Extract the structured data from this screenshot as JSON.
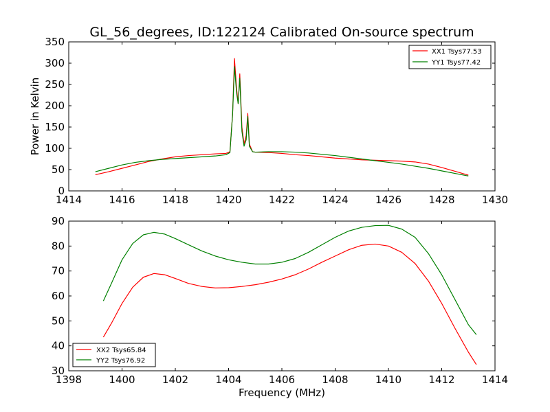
{
  "title": "GL_56_degrees, ID:122124 Calibrated On-source spectrum",
  "chart_data": [
    {
      "type": "line",
      "title": "GL_56_degrees, ID:122124 Calibrated On-source spectrum",
      "xlabel": "",
      "ylabel": "Power in Kelvin",
      "xlim": [
        1414,
        1430
      ],
      "ylim": [
        0,
        350
      ],
      "xticks": [
        1414,
        1416,
        1418,
        1420,
        1422,
        1424,
        1426,
        1428,
        1430
      ],
      "yticks": [
        0,
        50,
        100,
        150,
        200,
        250,
        300,
        350
      ],
      "legend": "top-right",
      "grid": false,
      "series": [
        {
          "name": "XX1 Tsys77.53",
          "color": "#ff0000",
          "points": [
            [
              1415.0,
              38
            ],
            [
              1415.5,
              45
            ],
            [
              1416.0,
              53
            ],
            [
              1416.5,
              61
            ],
            [
              1417.0,
              69
            ],
            [
              1417.5,
              75
            ],
            [
              1418.0,
              80
            ],
            [
              1418.5,
              83
            ],
            [
              1419.0,
              85
            ],
            [
              1419.5,
              87
            ],
            [
              1419.9,
              88
            ],
            [
              1420.05,
              92
            ],
            [
              1420.15,
              180
            ],
            [
              1420.22,
              311
            ],
            [
              1420.3,
              240
            ],
            [
              1420.36,
              205
            ],
            [
              1420.42,
              275
            ],
            [
              1420.5,
              150
            ],
            [
              1420.58,
              110
            ],
            [
              1420.66,
              130
            ],
            [
              1420.72,
              182
            ],
            [
              1420.78,
              110
            ],
            [
              1420.9,
              92
            ],
            [
              1421.0,
              91
            ],
            [
              1421.5,
              90
            ],
            [
              1422.0,
              88
            ],
            [
              1422.5,
              85
            ],
            [
              1423.0,
              83
            ],
            [
              1423.5,
              80
            ],
            [
              1424.0,
              77
            ],
            [
              1424.5,
              75
            ],
            [
              1425.0,
              73
            ],
            [
              1425.5,
              72
            ],
            [
              1426.0,
              71
            ],
            [
              1426.5,
              70
            ],
            [
              1427.0,
              68
            ],
            [
              1427.5,
              63
            ],
            [
              1428.0,
              55
            ],
            [
              1428.5,
              46
            ],
            [
              1429.0,
              37
            ]
          ]
        },
        {
          "name": "YY1 Tsys77.42",
          "color": "#008000",
          "points": [
            [
              1415.0,
              45
            ],
            [
              1415.5,
              53
            ],
            [
              1416.0,
              61
            ],
            [
              1416.5,
              67
            ],
            [
              1417.0,
              71
            ],
            [
              1417.5,
              74
            ],
            [
              1418.0,
              76
            ],
            [
              1418.5,
              78
            ],
            [
              1419.0,
              80
            ],
            [
              1419.5,
              82
            ],
            [
              1419.9,
              85
            ],
            [
              1420.05,
              90
            ],
            [
              1420.15,
              180
            ],
            [
              1420.22,
              292
            ],
            [
              1420.3,
              230
            ],
            [
              1420.36,
              205
            ],
            [
              1420.42,
              265
            ],
            [
              1420.5,
              140
            ],
            [
              1420.58,
              105
            ],
            [
              1420.66,
              120
            ],
            [
              1420.72,
              175
            ],
            [
              1420.78,
              105
            ],
            [
              1420.9,
              92
            ],
            [
              1421.0,
              91
            ],
            [
              1421.5,
              92
            ],
            [
              1422.0,
              92
            ],
            [
              1422.5,
              91
            ],
            [
              1423.0,
              89
            ],
            [
              1423.5,
              86
            ],
            [
              1424.0,
              83
            ],
            [
              1424.5,
              79
            ],
            [
              1425.0,
              75
            ],
            [
              1425.5,
              71
            ],
            [
              1426.0,
              67
            ],
            [
              1426.5,
              63
            ],
            [
              1427.0,
              58
            ],
            [
              1427.5,
              53
            ],
            [
              1428.0,
              47
            ],
            [
              1428.5,
              41
            ],
            [
              1429.0,
              35
            ]
          ]
        }
      ]
    },
    {
      "type": "line",
      "title": "",
      "xlabel": "Frequency (MHz)",
      "ylabel": "",
      "xlim": [
        1398,
        1414
      ],
      "ylim": [
        30,
        90
      ],
      "xticks": [
        1398,
        1400,
        1402,
        1404,
        1406,
        1408,
        1410,
        1412,
        1414
      ],
      "yticks": [
        30,
        40,
        50,
        60,
        70,
        80,
        90
      ],
      "legend": "bottom-left",
      "grid": false,
      "series": [
        {
          "name": "XX2 Tsys65.84",
          "color": "#ff0000",
          "points": [
            [
              1399.3,
              43.5
            ],
            [
              1399.6,
              49
            ],
            [
              1400.0,
              57
            ],
            [
              1400.4,
              63.5
            ],
            [
              1400.8,
              67.5
            ],
            [
              1401.2,
              69
            ],
            [
              1401.6,
              68.5
            ],
            [
              1402.0,
              67
            ],
            [
              1402.5,
              65
            ],
            [
              1403.0,
              63.8
            ],
            [
              1403.5,
              63.2
            ],
            [
              1404.0,
              63.3
            ],
            [
              1404.5,
              63.8
            ],
            [
              1405.0,
              64.5
            ],
            [
              1405.5,
              65.5
            ],
            [
              1406.0,
              66.8
            ],
            [
              1406.5,
              68.5
            ],
            [
              1407.0,
              70.8
            ],
            [
              1407.5,
              73.5
            ],
            [
              1408.0,
              76
            ],
            [
              1408.5,
              78.5
            ],
            [
              1409.0,
              80.3
            ],
            [
              1409.5,
              80.8
            ],
            [
              1410.0,
              80
            ],
            [
              1410.5,
              77.5
            ],
            [
              1411.0,
              73
            ],
            [
              1411.5,
              66
            ],
            [
              1412.0,
              57
            ],
            [
              1412.5,
              47
            ],
            [
              1413.0,
              37.5
            ],
            [
              1413.3,
              32.5
            ]
          ]
        },
        {
          "name": "YY2 Tsys76.92",
          "color": "#008000",
          "points": [
            [
              1399.3,
              58
            ],
            [
              1399.6,
              65
            ],
            [
              1400.0,
              74.5
            ],
            [
              1400.4,
              81
            ],
            [
              1400.8,
              84.5
            ],
            [
              1401.2,
              85.5
            ],
            [
              1401.6,
              84.8
            ],
            [
              1402.0,
              83
            ],
            [
              1402.5,
              80.5
            ],
            [
              1403.0,
              78
            ],
            [
              1403.5,
              76
            ],
            [
              1404.0,
              74.5
            ],
            [
              1404.5,
              73.5
            ],
            [
              1405.0,
              72.8
            ],
            [
              1405.5,
              72.8
            ],
            [
              1406.0,
              73.5
            ],
            [
              1406.5,
              75
            ],
            [
              1407.0,
              77.5
            ],
            [
              1407.5,
              80.5
            ],
            [
              1408.0,
              83.5
            ],
            [
              1408.5,
              86
            ],
            [
              1409.0,
              87.5
            ],
            [
              1409.5,
              88.2
            ],
            [
              1410.0,
              88.3
            ],
            [
              1410.5,
              86.8
            ],
            [
              1411.0,
              83.5
            ],
            [
              1411.5,
              77
            ],
            [
              1412.0,
              68.5
            ],
            [
              1412.5,
              58.5
            ],
            [
              1413.0,
              48.5
            ],
            [
              1413.3,
              44.5
            ]
          ]
        }
      ]
    }
  ]
}
